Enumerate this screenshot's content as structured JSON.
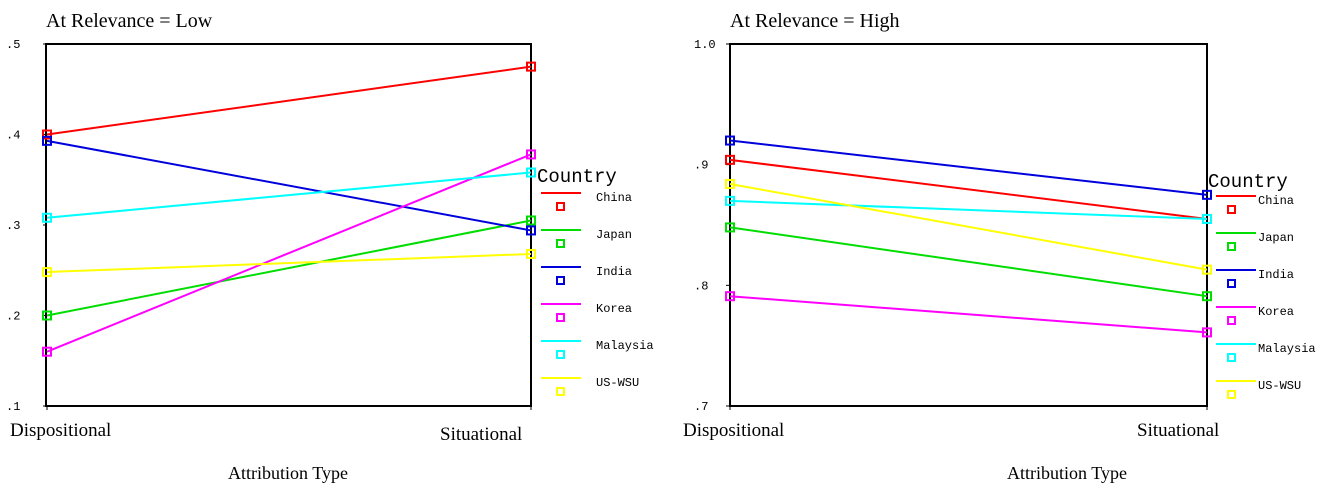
{
  "chart_data": [
    {
      "type": "line",
      "title": "At Relevance = Low",
      "xlabel": "Attribution Type",
      "ylabel": "",
      "categories": [
        "Dispositional",
        "Situational"
      ],
      "ylim": [
        0.1,
        0.5
      ],
      "yticks": [
        ".1",
        ".2",
        ".3",
        ".4",
        ".5"
      ],
      "legend_title": "Country",
      "legend_placement": "right",
      "series": [
        {
          "name": "China",
          "color": "#ff0000",
          "values": [
            0.4,
            0.475
          ]
        },
        {
          "name": "Japan",
          "color": "#00dd00",
          "values": [
            0.2,
            0.305
          ]
        },
        {
          "name": "India",
          "color": "#0000dd",
          "values": [
            0.393,
            0.294
          ]
        },
        {
          "name": "Korea",
          "color": "#ff00ff",
          "values": [
            0.16,
            0.378
          ]
        },
        {
          "name": "Malaysia",
          "color": "#00ffff",
          "values": [
            0.308,
            0.358
          ]
        },
        {
          "name": "US-WSU",
          "color": "#ffff00",
          "values": [
            0.248,
            0.268
          ]
        }
      ]
    },
    {
      "type": "line",
      "title": "At Relevance = High",
      "xlabel": "Attribution Type",
      "ylabel": "",
      "categories": [
        "Dispositional",
        "Situational"
      ],
      "ylim": [
        0.7,
        1.0
      ],
      "yticks": [
        ".7",
        ".8",
        ".9",
        "1.0"
      ],
      "legend_title": "Country",
      "legend_placement": "right",
      "series": [
        {
          "name": "China",
          "color": "#ff0000",
          "values": [
            0.904,
            0.855
          ]
        },
        {
          "name": "Japan",
          "color": "#00dd00",
          "values": [
            0.848,
            0.791
          ]
        },
        {
          "name": "India",
          "color": "#0000dd",
          "values": [
            0.92,
            0.875
          ]
        },
        {
          "name": "Korea",
          "color": "#ff00ff",
          "values": [
            0.791,
            0.761
          ]
        },
        {
          "name": "Malaysia",
          "color": "#00ffff",
          "values": [
            0.87,
            0.855
          ]
        },
        {
          "name": "US-WSU",
          "color": "#ffff00",
          "values": [
            0.884,
            0.813
          ]
        }
      ]
    }
  ]
}
